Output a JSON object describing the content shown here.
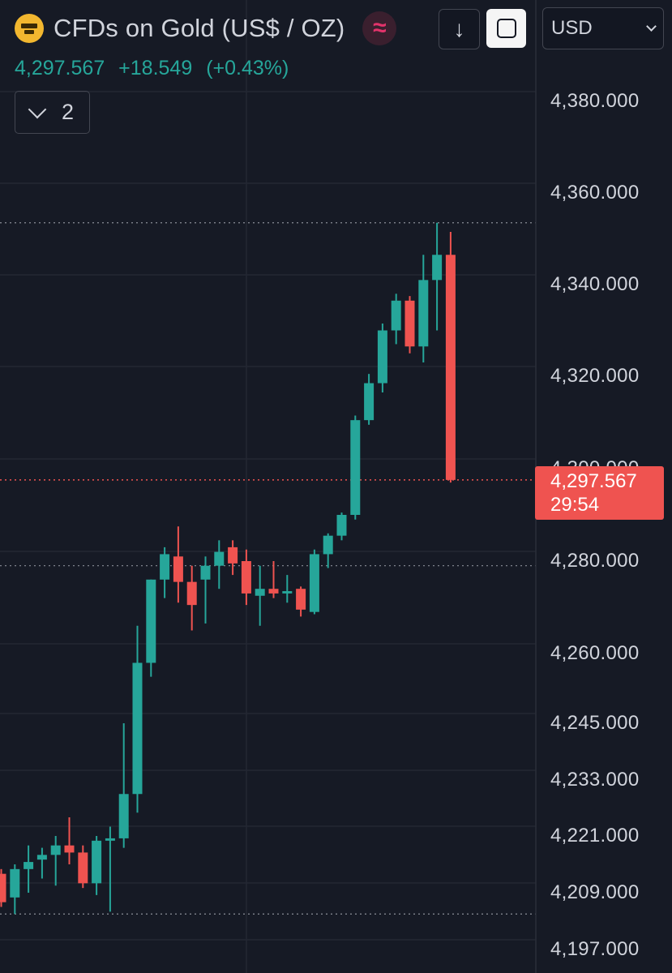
{
  "header": {
    "title": "CFDs on Gold (US$ / OZ)",
    "icon": "gold-bars-icon",
    "last_price": "4,297.567",
    "change": "+18.549",
    "change_pct": "(+0.43%)",
    "change_color": "#26a69a",
    "indicator_count": "2"
  },
  "toolbar": {
    "down_icon": "arrow-down-icon",
    "frame_icon": "frame-icon",
    "currency": "USD"
  },
  "price_tag": {
    "price": "4,297.567",
    "countdown": "29:54",
    "color": "#ef5350"
  },
  "chart_data": {
    "type": "candlestick",
    "title": "CFDs on Gold (US$ / OZ)",
    "currency": "USD",
    "up_color": "#26a69a",
    "down_color": "#ef5350",
    "y_ticks": [
      {
        "value": 4380,
        "label": "4,380.000"
      },
      {
        "value": 4360,
        "label": "4,360.000"
      },
      {
        "value": 4340,
        "label": "4,340.000"
      },
      {
        "value": 4320,
        "label": "4,320.000"
      },
      {
        "value": 4300,
        "label": "4,300.000"
      },
      {
        "value": 4280,
        "label": "4,280.000"
      },
      {
        "value": 4260,
        "label": "4,260.000"
      },
      {
        "value": 4245,
        "label": "4,245.000"
      },
      {
        "value": 4233,
        "label": "4,233.000"
      },
      {
        "value": 4221,
        "label": "4,221.000"
      },
      {
        "value": 4209,
        "label": "4,209.000"
      },
      {
        "value": 4197,
        "label": "4,197.000"
      }
    ],
    "scale_points": [
      [
        4380,
        125
      ],
      [
        4360,
        238
      ],
      [
        4340,
        351
      ],
      [
        4320,
        464
      ],
      [
        4300,
        578
      ],
      [
        4280,
        692
      ],
      [
        4260,
        806
      ],
      [
        4245,
        892
      ],
      [
        4233,
        962
      ],
      [
        4221,
        1031
      ],
      [
        4209,
        1101
      ],
      [
        4197,
        1171
      ]
    ],
    "current_price": 4297.567,
    "reference_lines": [
      4353.5,
      4279.0,
      4204.5
    ],
    "candles": [
      {
        "o": 4213.0,
        "h": 4214.0,
        "l": 4206.0,
        "c": 4207.0
      },
      {
        "o": 4208.0,
        "h": 4215.0,
        "l": 4204.5,
        "c": 4214.0
      },
      {
        "o": 4214.0,
        "h": 4219.0,
        "l": 4209.0,
        "c": 4215.5
      },
      {
        "o": 4216.0,
        "h": 4218.5,
        "l": 4212.0,
        "c": 4217.0
      },
      {
        "o": 4217.0,
        "h": 4221.0,
        "l": 4210.5,
        "c": 4219.0
      },
      {
        "o": 4219.0,
        "h": 4225.0,
        "l": 4215.0,
        "c": 4217.5
      },
      {
        "o": 4217.5,
        "h": 4219.0,
        "l": 4210.0,
        "c": 4211.0
      },
      {
        "o": 4211.0,
        "h": 4221.0,
        "l": 4208.5,
        "c": 4220.0
      },
      {
        "o": 4220.0,
        "h": 4223.0,
        "l": 4205.0,
        "c": 4220.5
      },
      {
        "o": 4220.5,
        "h": 4245.0,
        "l": 4218.5,
        "c": 4230.0
      },
      {
        "o": 4230.0,
        "h": 4266.0,
        "l": 4226.0,
        "c": 4258.0
      },
      {
        "o": 4258.0,
        "h": 4276.0,
        "l": 4255.0,
        "c": 4276.0
      },
      {
        "o": 4276.0,
        "h": 4283.0,
        "l": 4272.0,
        "c": 4281.5
      },
      {
        "o": 4281.0,
        "h": 4287.5,
        "l": 4271.0,
        "c": 4275.5
      },
      {
        "o": 4275.5,
        "h": 4279.0,
        "l": 4265.0,
        "c": 4270.5
      },
      {
        "o": 4276.0,
        "h": 4281.0,
        "l": 4266.5,
        "c": 4279.0
      },
      {
        "o": 4279.0,
        "h": 4284.5,
        "l": 4274.0,
        "c": 4282.0
      },
      {
        "o": 4283.0,
        "h": 4284.5,
        "l": 4277.0,
        "c": 4279.5
      },
      {
        "o": 4280.0,
        "h": 4282.5,
        "l": 4270.5,
        "c": 4273.0
      },
      {
        "o": 4272.5,
        "h": 4279.0,
        "l": 4266.0,
        "c": 4274.0
      },
      {
        "o": 4274.0,
        "h": 4280.0,
        "l": 4272.0,
        "c": 4273.0
      },
      {
        "o": 4273.0,
        "h": 4277.0,
        "l": 4271.0,
        "c": 4273.5
      },
      {
        "o": 4274.0,
        "h": 4274.5,
        "l": 4268.0,
        "c": 4269.5
      },
      {
        "o": 4269.0,
        "h": 4282.5,
        "l": 4268.5,
        "c": 4281.5
      },
      {
        "o": 4281.5,
        "h": 4286.0,
        "l": 4278.5,
        "c": 4285.5
      },
      {
        "o": 4285.5,
        "h": 4290.5,
        "l": 4284.5,
        "c": 4290.0
      },
      {
        "o": 4290.0,
        "h": 4311.5,
        "l": 4289.0,
        "c": 4310.5
      },
      {
        "o": 4310.5,
        "h": 4320.5,
        "l": 4309.5,
        "c": 4318.5
      },
      {
        "o": 4318.5,
        "h": 4331.5,
        "l": 4316.5,
        "c": 4330.0
      },
      {
        "o": 4330.0,
        "h": 4338.0,
        "l": 4327.0,
        "c": 4336.5
      },
      {
        "o": 4336.5,
        "h": 4337.5,
        "l": 4325.0,
        "c": 4326.5
      },
      {
        "o": 4326.5,
        "h": 4346.5,
        "l": 4323.0,
        "c": 4341.0
      },
      {
        "o": 4341.0,
        "h": 4353.5,
        "l": 4330.0,
        "c": 4346.5
      },
      {
        "o": 4346.5,
        "h": 4351.5,
        "l": 4297.0,
        "c": 4297.567
      }
    ]
  }
}
